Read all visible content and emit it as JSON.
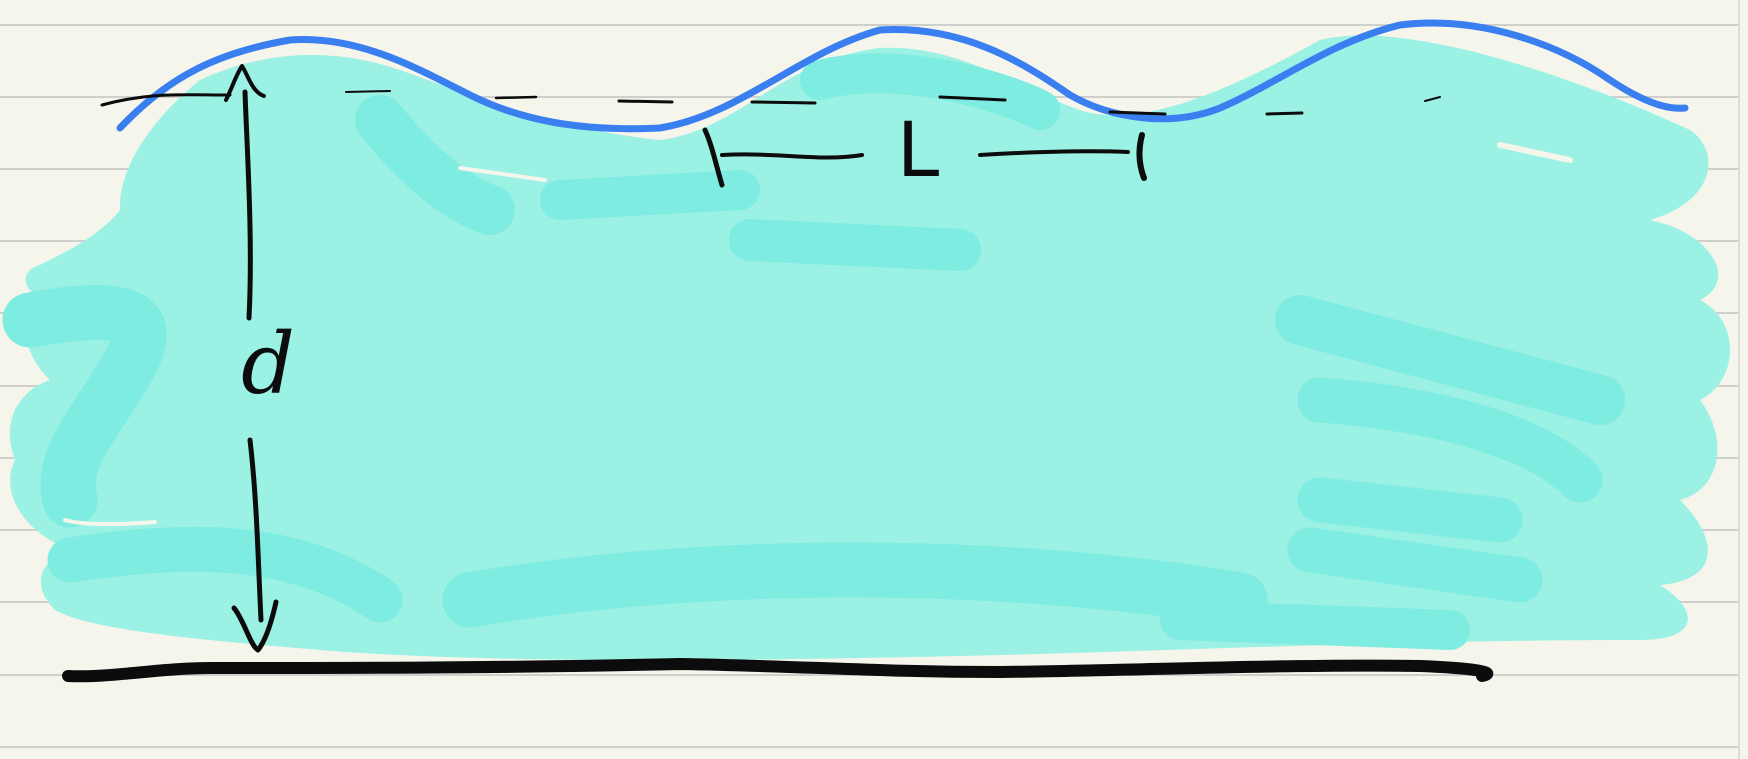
{
  "labels": {
    "depth": "d",
    "length": "L"
  },
  "colors": {
    "paper": "#f6f5ec",
    "ruled_line": "#cfd0cc",
    "margin_line": "#dcdcd8",
    "water_fill": "#9af1e4",
    "water_fill_dark": "#7eece0",
    "wave_line": "#3a7ff0",
    "ink": "#0c0c0c"
  }
}
